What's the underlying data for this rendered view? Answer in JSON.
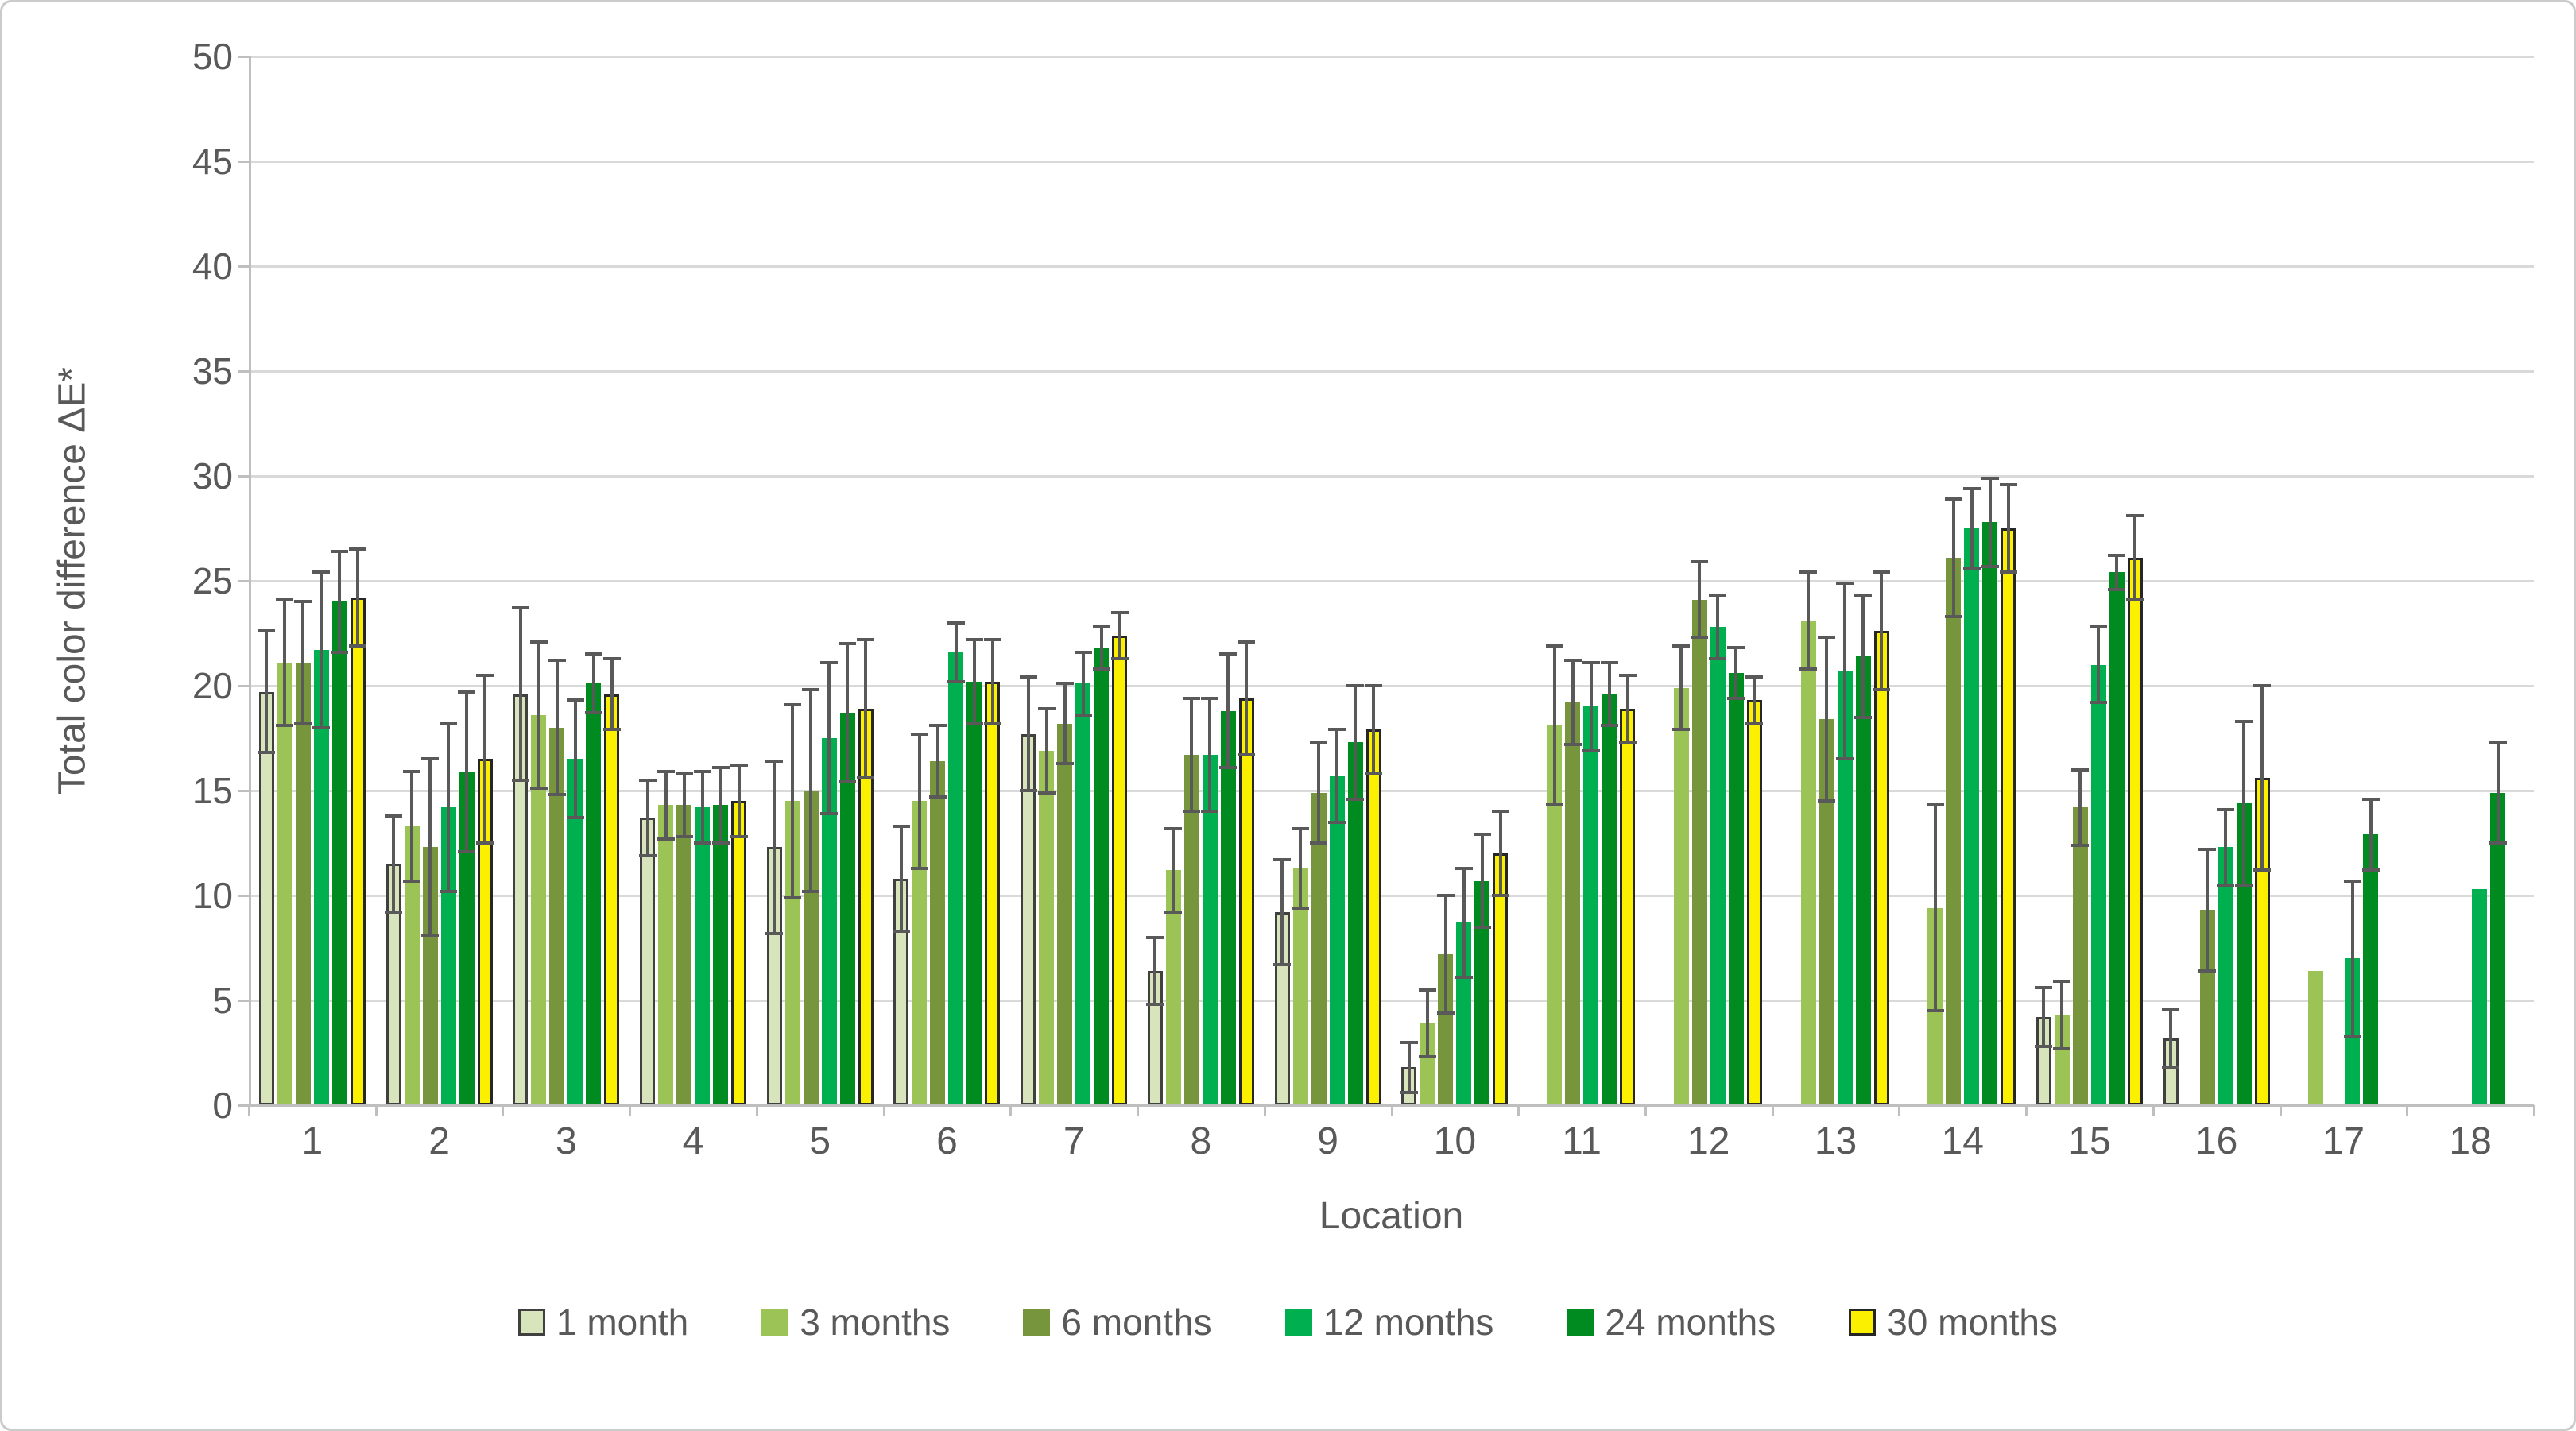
{
  "chart_data": {
    "type": "bar",
    "title": "",
    "xlabel": "Location",
    "ylabel": "Total color difference ΔE*",
    "ylim": [
      0,
      50
    ],
    "yticks": [
      0,
      5,
      10,
      15,
      20,
      25,
      30,
      35,
      40,
      45,
      50
    ],
    "grid": true,
    "legend_position": "bottom",
    "error_bars": true,
    "categories": [
      "1",
      "2",
      "3",
      "4",
      "5",
      "6",
      "7",
      "8",
      "9",
      "10",
      "11",
      "12",
      "13",
      "14",
      "15",
      "16",
      "17",
      "18"
    ],
    "series": [
      {
        "name": "1 month",
        "fill": "#D8E4BC",
        "stroke": "#404040",
        "values": [
          19.7,
          11.5,
          19.6,
          13.7,
          12.3,
          10.8,
          17.7,
          6.4,
          9.2,
          1.8,
          null,
          null,
          null,
          null,
          4.2,
          3.2,
          null,
          null
        ],
        "errors": [
          2.9,
          2.3,
          4.1,
          1.8,
          4.1,
          2.5,
          2.7,
          1.6,
          2.5,
          1.2,
          null,
          null,
          null,
          null,
          1.4,
          1.4,
          null,
          null
        ]
      },
      {
        "name": "3 months",
        "fill": "#9CC356",
        "stroke": null,
        "values": [
          21.1,
          13.3,
          18.6,
          14.3,
          14.5,
          14.5,
          16.9,
          11.2,
          11.3,
          3.9,
          18.1,
          19.9,
          23.1,
          9.4,
          4.3,
          null,
          6.4,
          null
        ],
        "errors": [
          3.0,
          2.6,
          3.5,
          1.6,
          4.6,
          3.2,
          2.0,
          2.0,
          1.9,
          1.6,
          3.8,
          2.0,
          2.3,
          4.9,
          1.6,
          null,
          0,
          null
        ]
      },
      {
        "name": "6 months",
        "fill": "#76953C",
        "stroke": null,
        "values": [
          21.1,
          12.3,
          18.0,
          14.3,
          15.0,
          16.4,
          18.2,
          16.7,
          14.9,
          7.2,
          19.2,
          24.1,
          18.4,
          26.1,
          14.2,
          9.3,
          null,
          null
        ],
        "errors": [
          2.9,
          4.2,
          3.2,
          1.5,
          4.8,
          1.7,
          1.9,
          2.7,
          2.4,
          2.8,
          2.0,
          1.8,
          3.9,
          2.8,
          1.8,
          2.9,
          null,
          null
        ]
      },
      {
        "name": "12 months",
        "fill": "#00AF50",
        "stroke": null,
        "values": [
          21.7,
          14.2,
          16.5,
          14.2,
          17.5,
          21.6,
          20.1,
          16.7,
          15.7,
          8.7,
          19.0,
          22.8,
          20.7,
          27.5,
          21.0,
          12.3,
          7.0,
          10.3
        ],
        "errors": [
          3.7,
          4.0,
          2.8,
          1.7,
          3.6,
          1.4,
          1.5,
          2.7,
          2.2,
          2.6,
          2.1,
          1.5,
          4.2,
          1.9,
          1.8,
          1.8,
          3.7,
          0
        ]
      },
      {
        "name": "24 months",
        "fill": "#008B21",
        "stroke": null,
        "values": [
          24.0,
          15.9,
          20.1,
          14.3,
          18.7,
          20.2,
          21.8,
          18.8,
          17.3,
          10.7,
          19.6,
          20.6,
          21.4,
          27.8,
          25.4,
          14.4,
          12.9,
          14.9
        ],
        "errors": [
          2.4,
          3.8,
          1.4,
          1.8,
          3.3,
          2.0,
          1.0,
          2.7,
          2.7,
          2.2,
          1.5,
          1.2,
          2.9,
          2.1,
          0.8,
          3.9,
          1.7,
          2.4
        ]
      },
      {
        "name": "30 months",
        "fill": "#FBF000",
        "stroke": "#262626",
        "values": [
          24.2,
          16.5,
          19.6,
          14.5,
          18.9,
          20.2,
          22.4,
          19.4,
          17.9,
          12.0,
          18.9,
          19.3,
          22.6,
          27.5,
          26.1,
          15.6,
          null,
          null
        ],
        "errors": [
          2.3,
          4.0,
          1.7,
          1.7,
          3.3,
          2.0,
          1.1,
          2.7,
          2.1,
          2.0,
          1.6,
          1.1,
          2.8,
          2.1,
          2.0,
          4.4,
          null,
          null
        ]
      }
    ]
  },
  "colors": {
    "gridline": "#d9d9d9",
    "axis_line": "#bfbfbf",
    "text": "#595959",
    "error_bar": "#595959",
    "frame_border": "#cbcbcb",
    "background": "#ffffff"
  }
}
